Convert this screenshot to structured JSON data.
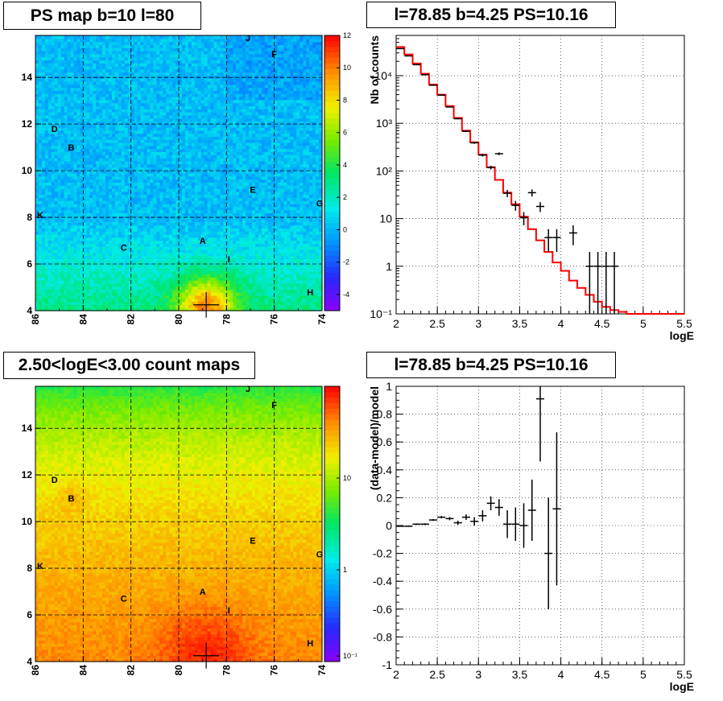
{
  "panels": {
    "ps_map": {
      "title": "PS map b=10 l=80",
      "x_ticks": [
        "86",
        "84",
        "82",
        "80",
        "78",
        "76",
        "74"
      ],
      "y_ticks": [
        "4",
        "6",
        "8",
        "10",
        "12",
        "14"
      ],
      "colorbar_ticks": [
        "12",
        "10",
        "8",
        "6",
        "4",
        "2",
        "0",
        "-2",
        "-4"
      ]
    },
    "spectrum": {
      "title": "l=78.85 b=4.25 PS=10.16",
      "ylabel": "Nb of counts",
      "xlabel": "logE",
      "x_ticks": [
        "2",
        "2.5",
        "3",
        "3.5",
        "4",
        "4.5",
        "5",
        "5.5"
      ],
      "y_ticks": [
        "10⁻¹",
        "1",
        "10",
        "10²",
        "10³",
        "10⁴"
      ]
    },
    "count_map": {
      "title": "2.50<logE<3.00 count maps",
      "x_ticks": [
        "86",
        "84",
        "82",
        "80",
        "78",
        "76",
        "74"
      ],
      "y_ticks": [
        "4",
        "6",
        "8",
        "10",
        "12",
        "14"
      ],
      "colorbar_ticks": [
        "10",
        "1",
        "10⁻¹"
      ]
    },
    "residual": {
      "title": "l=78.85 b=4.25 PS=10.16",
      "ylabel": "(data-model)/model",
      "xlabel": "logE",
      "x_ticks": [
        "2",
        "2.5",
        "3",
        "3.5",
        "4",
        "4.5",
        "5",
        "5.5"
      ],
      "y_ticks": [
        "1",
        "0.8",
        "0.6",
        "0.4",
        "0.2",
        "0",
        "-0.2",
        "-0.4",
        "-0.6",
        "-0.8",
        "-1"
      ]
    }
  },
  "sources": [
    {
      "label": "J",
      "l": 77.1,
      "b": 15.7
    },
    {
      "label": "F",
      "l": 76.0,
      "b": 15.0
    },
    {
      "label": "D",
      "l": 85.2,
      "b": 11.8
    },
    {
      "label": "B",
      "l": 84.5,
      "b": 11.0
    },
    {
      "label": "E",
      "l": 76.9,
      "b": 9.2
    },
    {
      "label": "G",
      "l": 74.1,
      "b": 8.6
    },
    {
      "label": "K",
      "l": 85.8,
      "b": 8.1
    },
    {
      "label": "A",
      "l": 79.0,
      "b": 7.0
    },
    {
      "label": "C",
      "l": 82.3,
      "b": 6.7
    },
    {
      "label": "I",
      "l": 77.9,
      "b": 6.2
    },
    {
      "label": "H",
      "l": 74.5,
      "b": 4.8
    }
  ],
  "chart_data": [
    {
      "type": "heatmap",
      "title": "PS map b=10 l=80",
      "xlim": [
        86,
        74
      ],
      "ylim": [
        4,
        15.8
      ],
      "zlim": [
        -5,
        12
      ],
      "colorbar": "linear",
      "grid": true,
      "marker": {
        "l": 78.85,
        "b": 4.25
      },
      "description_values": {
        "background_level": 0.5,
        "peak_level": 6
      }
    },
    {
      "type": "line",
      "title": "l=78.85 b=4.25 PS=10.16",
      "xlabel": "logE",
      "ylabel": "Nb of counts",
      "xlim": [
        2,
        5.5
      ],
      "ylim": [
        0.1,
        70000
      ],
      "yscale": "log",
      "grid": true,
      "series": [
        {
          "style": "step",
          "color": "#ff0000",
          "x": [
            2.0,
            2.1,
            2.2,
            2.3,
            2.4,
            2.5,
            2.6,
            2.7,
            2.8,
            2.9,
            3.0,
            3.1,
            3.2,
            3.3,
            3.4,
            3.5,
            3.6,
            3.7,
            3.8,
            3.9,
            4.0,
            4.1,
            4.2,
            4.3,
            4.4,
            4.5,
            4.6,
            4.7,
            4.8,
            4.9,
            5.0,
            5.1,
            5.2,
            5.3,
            5.4
          ],
          "values": [
            40000,
            28000,
            18000,
            11000,
            6500,
            4000,
            2300,
            1300,
            700,
            400,
            220,
            120,
            65,
            35,
            20,
            11,
            6,
            3.5,
            2,
            1.2,
            0.8,
            0.5,
            0.35,
            0.25,
            0.18,
            0.14,
            0.12,
            0.11,
            0.1,
            0.1,
            0.1,
            0.1,
            0.1,
            0.1,
            0.1
          ]
        },
        {
          "style": "errorbar",
          "color": "#000000",
          "x": [
            2.05,
            2.15,
            2.25,
            2.35,
            2.45,
            2.55,
            2.65,
            2.75,
            2.85,
            2.95,
            3.05,
            3.15,
            3.25,
            3.35,
            3.45,
            3.55,
            3.65,
            3.75,
            3.85,
            3.95,
            4.15,
            4.35,
            4.45,
            4.55,
            4.65
          ],
          "values": [
            37000,
            26000,
            17000,
            10500,
            6300,
            3900,
            2200,
            1250,
            680,
            390,
            215,
            118,
            230,
            34,
            19,
            10.5,
            35,
            18,
            4,
            4,
            5,
            1,
            1,
            1,
            1
          ]
        }
      ]
    },
    {
      "type": "heatmap",
      "title": "2.50<logE<3.00 count maps",
      "xlim": [
        86,
        74
      ],
      "ylim": [
        4,
        15.8
      ],
      "zlim": [
        0.1,
        100
      ],
      "colorbar": "log",
      "grid": true,
      "marker": {
        "l": 78.85,
        "b": 4.25
      },
      "description_values": {
        "low_b_level": 30,
        "high_b_level": 4
      }
    },
    {
      "type": "scatter",
      "title": "l=78.85 b=4.25 PS=10.16",
      "xlabel": "logE",
      "ylabel": "(data-model)/model",
      "xlim": [
        2,
        5.5
      ],
      "ylim": [
        -1,
        1
      ],
      "grid": true,
      "series": [
        {
          "style": "errorbar",
          "color": "#000000",
          "x": [
            2.05,
            2.15,
            2.25,
            2.35,
            2.45,
            2.55,
            2.65,
            2.75,
            2.85,
            2.95,
            3.05,
            3.15,
            3.25,
            3.35,
            3.45,
            3.55,
            3.65,
            3.75,
            3.85,
            3.95
          ],
          "values": [
            -0.005,
            -0.005,
            0.01,
            0.01,
            0.04,
            0.06,
            0.05,
            0.02,
            0.06,
            0.03,
            0.07,
            0.16,
            0.13,
            0.01,
            0.01,
            0.0,
            0.11,
            0.91,
            -0.2,
            0.12
          ],
          "errors": [
            0.003,
            0.004,
            0.005,
            0.006,
            0.007,
            0.009,
            0.012,
            0.015,
            0.02,
            0.03,
            0.04,
            0.05,
            0.06,
            0.1,
            0.12,
            0.16,
            0.22,
            0.45,
            0.4,
            0.55
          ]
        }
      ]
    }
  ]
}
